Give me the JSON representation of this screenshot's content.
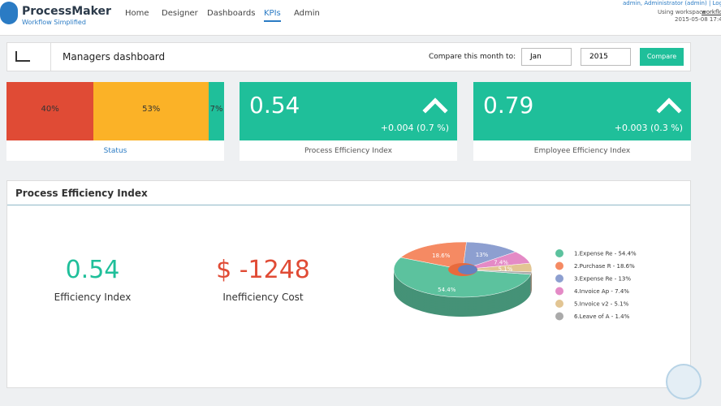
{
  "header": {
    "brand": "ProcessMaker",
    "tagline": "Workflow Simplified",
    "nav": [
      "Home",
      "Designer",
      "Dashboards",
      "KPIs",
      "Admin"
    ],
    "user": "admin, Administrator (admin) | Log",
    "workspace_label": "Using workspace",
    "workspace": "workflo",
    "datetime": "2015-05-08 17:42:5"
  },
  "toolbar": {
    "title": "Managers dashboard",
    "compare_label": "Compare this month to:",
    "month": "Jan",
    "year": "2015",
    "button": "Compare"
  },
  "status": {
    "label": "Status",
    "values": [
      40,
      53,
      7
    ],
    "value_labels": [
      "40%",
      "53%",
      "7%"
    ],
    "colors": [
      "#e04b35",
      "#fbb227",
      "#1fbf9a"
    ]
  },
  "cards": [
    {
      "value": "0.54",
      "change": "+0.004 (0.7 %)",
      "label": "Process Efficiency Index"
    },
    {
      "value": "0.79",
      "change": "+0.003 (0.3 %)",
      "label": "Employee Efficiency Index"
    }
  ],
  "panel": {
    "title": "Process Efficiency Index",
    "metrics": [
      {
        "value": "0.54",
        "label": "Efficiency Index",
        "color": "#1fbf9a"
      },
      {
        "value": "$ -1248",
        "label": "Inefficiency Cost",
        "color": "#e04b35"
      }
    ]
  },
  "chart_data": {
    "type": "pie",
    "categories": [
      "1.Expense Re - 54.4%",
      "2.Purchase R - 18.6%",
      "3.Expense Re - 13%",
      "4.Invoice Ap - 7.4%",
      "5.Invoice v2 - 5.1%",
      "6.Leave of A - 1.4%"
    ],
    "values": [
      54.4,
      18.6,
      13,
      7.4,
      5.1,
      1.4
    ],
    "value_labels": [
      "54.4%",
      "18.6%",
      "13%",
      "7.4%",
      "5.1%",
      null
    ],
    "colors": [
      "#5cc29e",
      "#f58a63",
      "#8d9fd0",
      "#e48ac6",
      "#e2c593",
      "#aaaaaa"
    ]
  }
}
